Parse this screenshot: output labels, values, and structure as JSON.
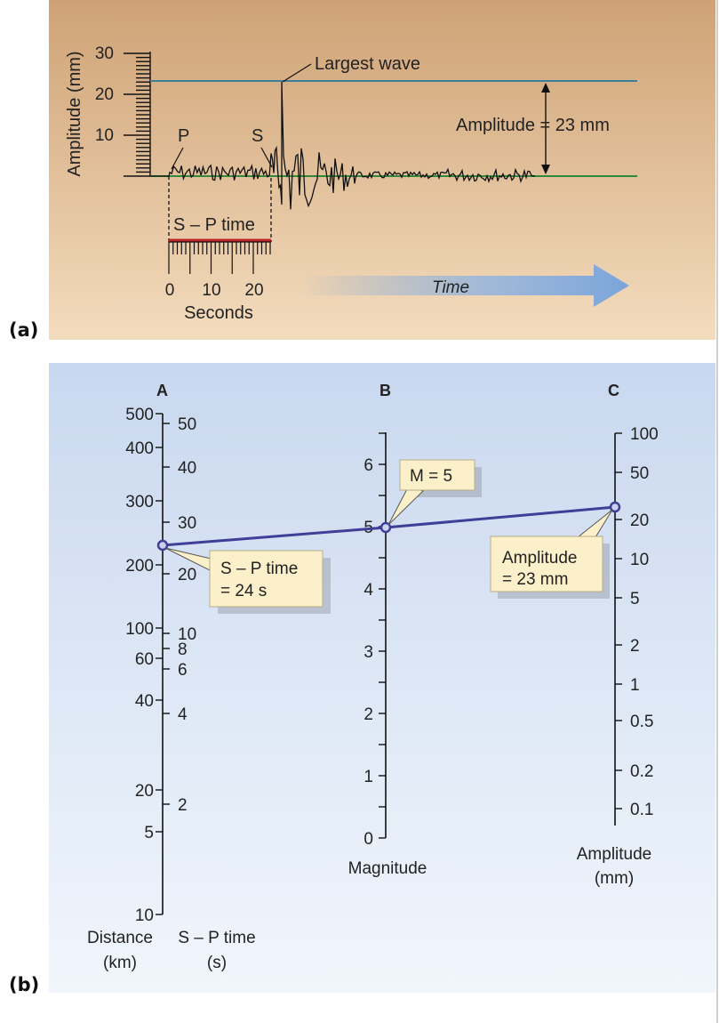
{
  "panel_a": {
    "label": "(a)",
    "ylabel": "Amplitude (mm)",
    "yticks": [
      "30",
      "20",
      "10"
    ],
    "p_label": "P",
    "s_label": "S",
    "largest_wave_label": "Largest wave",
    "amplitude_label": "Amplitude = 23 mm",
    "sp_time_label": "S – P time",
    "xticks": [
      "0",
      "10",
      "20"
    ],
    "xlabel": "Seconds",
    "time_label": "Time",
    "colors": {
      "max_line": "#3b7f9a",
      "baseline": "#2e8a3a",
      "sp_bar": "#c0242a",
      "time_arrow": "#7aa5db"
    }
  },
  "panel_b": {
    "label": "(b)",
    "scale_a_header": "A",
    "scale_b_header": "B",
    "scale_c_header": "C",
    "distance_ticks": [
      "500",
      "400",
      "300",
      "200",
      "100",
      "60",
      "40",
      "20",
      "5",
      "10"
    ],
    "sp_ticks": [
      "50",
      "40",
      "30",
      "20",
      "10",
      "8",
      "6",
      "4",
      "2"
    ],
    "magnitude_ticks": [
      "0",
      "1",
      "2",
      "3",
      "4",
      "5",
      "6"
    ],
    "amplitude_ticks": [
      "100",
      "50",
      "20",
      "10",
      "5",
      "2",
      "1",
      "0.5",
      "0.2",
      "0.1"
    ],
    "callout_sp": [
      "S – P time",
      "= 24 s"
    ],
    "callout_m": "M = 5",
    "callout_amp": [
      "Amplitude",
      "= 23 mm"
    ],
    "distance_label": [
      "Distance",
      "(km)"
    ],
    "sp_axis_label": [
      "S – P time",
      "(s)"
    ],
    "magnitude_label": "Magnitude",
    "amplitude_axis_label": [
      "Amplitude",
      "(mm)"
    ],
    "reading": {
      "sp_time_s": 24,
      "magnitude": 5,
      "amplitude_mm": 23
    },
    "colors": {
      "line": "#3f3f98",
      "callout_fill": "#fbf0c9"
    }
  }
}
